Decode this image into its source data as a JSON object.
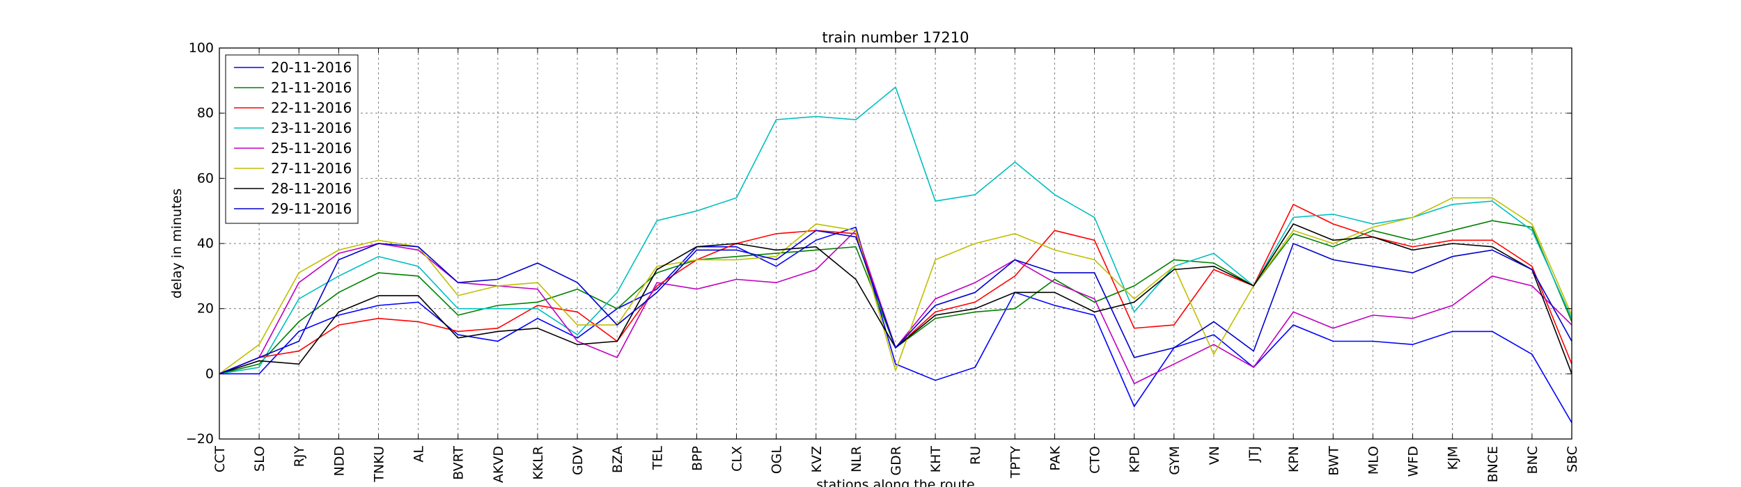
{
  "chart_data": {
    "type": "line",
    "title": "train number 17210",
    "xlabel": "stations along the route",
    "ylabel": "delay in minutes",
    "ylim": [
      -20,
      100
    ],
    "yticks": [
      -20,
      0,
      20,
      40,
      60,
      80,
      100
    ],
    "grid": true,
    "legend_position": "top-left",
    "categories": [
      "CCT",
      "SLO",
      "RJY",
      "NDD",
      "TNKU",
      "AL",
      "BVRT",
      "AKVD",
      "KKLR",
      "GDV",
      "BZA",
      "TEL",
      "BPP",
      "CLX",
      "OGL",
      "KVZ",
      "NLR",
      "GDR",
      "KHT",
      "RU",
      "TPTY",
      "PAK",
      "CTO",
      "KPD",
      "GYM",
      "VN",
      "JTJ",
      "KPN",
      "BWT",
      "MLO",
      "WFD",
      "KJM",
      "BNCE",
      "BNC",
      "SBC"
    ],
    "series": [
      {
        "name": "20-11-2016",
        "color": "#0000ff",
        "values": [
          0,
          0,
          13,
          18,
          21,
          22,
          12,
          10,
          17,
          11,
          20,
          26,
          39,
          39,
          33,
          41,
          45,
          3,
          -2,
          2,
          25,
          21,
          18,
          -10,
          8,
          12,
          2,
          15,
          10,
          10,
          9,
          13,
          13,
          6,
          -15
        ]
      },
      {
        "name": "21-11-2016",
        "color": "#008000",
        "values": [
          0,
          3,
          16,
          25,
          31,
          30,
          18,
          21,
          22,
          26,
          20,
          31,
          35,
          36,
          37,
          38,
          39,
          8,
          17,
          19,
          20,
          29,
          22,
          27,
          35,
          34,
          27,
          43,
          39,
          44,
          41,
          44,
          47,
          45,
          16
        ]
      },
      {
        "name": "22-11-2016",
        "color": "#ff0000",
        "values": [
          0,
          5,
          7,
          15,
          17,
          16,
          13,
          14,
          21,
          19,
          10,
          27,
          35,
          40,
          43,
          44,
          43,
          8,
          19,
          22,
          30,
          44,
          41,
          14,
          15,
          32,
          27,
          52,
          46,
          42,
          39,
          41,
          41,
          33,
          3
        ]
      },
      {
        "name": "23-11-2016",
        "color": "#00bfbf",
        "values": [
          0,
          2,
          23,
          30,
          36,
          33,
          20,
          20,
          20,
          12,
          25,
          47,
          50,
          54,
          78,
          79,
          78,
          88,
          53,
          55,
          65,
          55,
          48,
          19,
          33,
          37,
          27,
          48,
          49,
          46,
          48,
          52,
          53,
          44,
          17
        ]
      },
      {
        "name": "25-11-2016",
        "color": "#bf00bf",
        "values": [
          0,
          5,
          28,
          37,
          40,
          38,
          28,
          27,
          26,
          10,
          5,
          28,
          26,
          29,
          28,
          32,
          44,
          8,
          23,
          28,
          35,
          28,
          23,
          -3,
          3,
          9,
          2,
          19,
          14,
          18,
          17,
          21,
          30,
          27,
          15
        ]
      },
      {
        "name": "27-11-2016",
        "color": "#bfbf00",
        "values": [
          0,
          9,
          31,
          38,
          41,
          39,
          24,
          27,
          28,
          15,
          15,
          33,
          35,
          35,
          36,
          46,
          44,
          1,
          35,
          40,
          43,
          38,
          35,
          23,
          33,
          6,
          27,
          44,
          40,
          45,
          48,
          54,
          54,
          46,
          18
        ]
      },
      {
        "name": "28-11-2016",
        "color": "#000000",
        "values": [
          0,
          4,
          3,
          19,
          24,
          24,
          11,
          13,
          14,
          9,
          10,
          32,
          39,
          40,
          38,
          39,
          29,
          8,
          18,
          20,
          25,
          25,
          19,
          22,
          32,
          33,
          27,
          46,
          41,
          42,
          38,
          40,
          39,
          32,
          0
        ]
      },
      {
        "name": "29-11-2016",
        "color": "#0000cc",
        "values": [
          0,
          5,
          10,
          35,
          40,
          39,
          28,
          29,
          34,
          28,
          15,
          25,
          38,
          38,
          35,
          44,
          42,
          8,
          21,
          25,
          35,
          31,
          31,
          5,
          8,
          16,
          7,
          40,
          35,
          33,
          31,
          36,
          38,
          32,
          10
        ]
      }
    ]
  }
}
